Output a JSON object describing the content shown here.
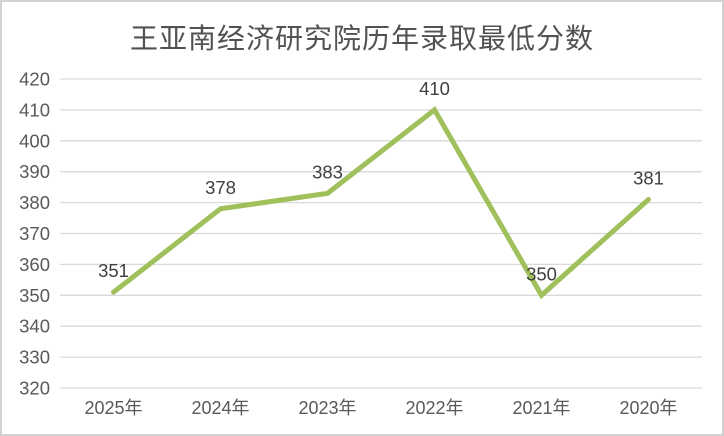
{
  "chart_data": {
    "type": "line",
    "title": "王亚南经济研究院历年录取最低分数",
    "categories": [
      "2025年",
      "2024年",
      "2023年",
      "2022年",
      "2021年",
      "2020年"
    ],
    "values": [
      351,
      378,
      383,
      410,
      350,
      381
    ],
    "data_labels": [
      351,
      378,
      383,
      410,
      350,
      381
    ],
    "xlabel": "",
    "ylabel": "",
    "ylim": [
      320,
      420
    ],
    "ytick_step": 10,
    "yticks": [
      320,
      330,
      340,
      350,
      360,
      370,
      380,
      390,
      400,
      410,
      420
    ],
    "grid": "horizontal",
    "legend": "none",
    "colors": {
      "line": "#9fc05a",
      "gridline": "#d9d9d9",
      "axis_tick_text": "#595959",
      "data_label_text": "#404040",
      "title_text": "#525252",
      "frame_border": "#d2d2d2",
      "background": "#ffffff"
    }
  }
}
